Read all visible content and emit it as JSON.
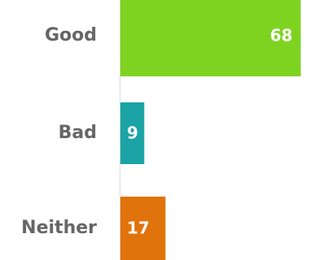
{
  "chart_data": {
    "type": "bar",
    "orientation": "horizontal",
    "categories": [
      "Good",
      "Bad",
      "Neither"
    ],
    "values": [
      68,
      9,
      17
    ],
    "colors": [
      "#7ed321",
      "#1ba3a6",
      "#e0730b"
    ],
    "title": "",
    "xlabel": "",
    "ylabel": "",
    "xlim": [
      0,
      73
    ],
    "grid": false,
    "legend": "none",
    "data_labels": [
      "68",
      "9",
      "17"
    ]
  },
  "colors": {
    "label_text": "#666666",
    "value_text": "#ffffff",
    "axis_line": "#dddddd",
    "background": "#ffffff"
  }
}
